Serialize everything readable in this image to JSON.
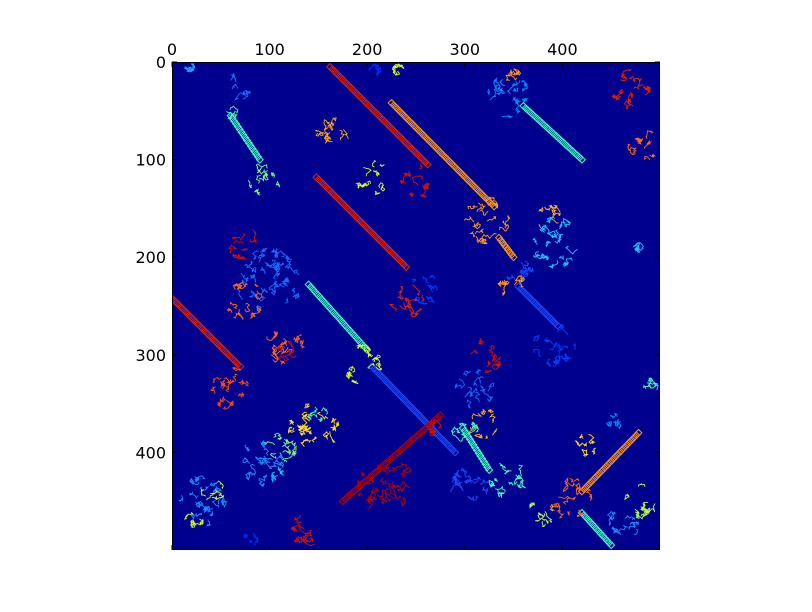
{
  "chart_data": {
    "type": "heatmap",
    "title": "",
    "xlabel": "",
    "ylabel": "",
    "xlim": [
      0,
      500
    ],
    "ylim": [
      500,
      0
    ],
    "x_ticks": [
      0,
      100,
      200,
      300,
      400
    ],
    "y_ticks": [
      0,
      100,
      200,
      300,
      400
    ],
    "x_axis_position": "top",
    "y_axis_inverted": true,
    "colormap": "jet",
    "background_color": "#00008f",
    "grid": false,
    "legend": "none",
    "blobs": [
      {
        "x": 68,
        "y": 25,
        "r": 14,
        "color": "#1a6cff"
      },
      {
        "x": 60,
        "y": 50,
        "r": 8,
        "color": "#4dffae"
      },
      {
        "x": 95,
        "y": 120,
        "r": 17,
        "color": "#7dff80"
      },
      {
        "x": 165,
        "y": 70,
        "r": 18,
        "color": "#ffa614"
      },
      {
        "x": 205,
        "y": 118,
        "r": 18,
        "color": "#d4ff22"
      },
      {
        "x": 252,
        "y": 122,
        "r": 18,
        "color": "#d41100"
      },
      {
        "x": 18,
        "y": 5,
        "r": 5,
        "color": "#2aa8ff"
      },
      {
        "x": 208,
        "y": 8,
        "r": 6,
        "color": "#0030ff"
      },
      {
        "x": 232,
        "y": 8,
        "r": 6,
        "color": "#d4ff22"
      },
      {
        "x": 345,
        "y": 35,
        "r": 22,
        "color": "#0090ff"
      },
      {
        "x": 350,
        "y": 15,
        "r": 8,
        "color": "#ff9a1a"
      },
      {
        "x": 470,
        "y": 28,
        "r": 20,
        "color": "#e62300"
      },
      {
        "x": 483,
        "y": 85,
        "r": 16,
        "color": "#ff6a1a"
      },
      {
        "x": 388,
        "y": 160,
        "r": 14,
        "color": "#ffb21a"
      },
      {
        "x": 392,
        "y": 185,
        "r": 26,
        "color": "#20c4ff"
      },
      {
        "x": 322,
        "y": 162,
        "r": 24,
        "color": "#ff9a1a"
      },
      {
        "x": 356,
        "y": 215,
        "r": 14,
        "color": "#1a4cff"
      },
      {
        "x": 348,
        "y": 228,
        "r": 14,
        "color": "#ff9a1a"
      },
      {
        "x": 72,
        "y": 185,
        "r": 17,
        "color": "#d41100"
      },
      {
        "x": 100,
        "y": 225,
        "r": 34,
        "color": "#1a6cff"
      },
      {
        "x": 75,
        "y": 245,
        "r": 20,
        "color": "#ff6a1a"
      },
      {
        "x": 115,
        "y": 290,
        "r": 20,
        "color": "#ff6a1a"
      },
      {
        "x": 120,
        "y": 298,
        "r": 12,
        "color": "#d41100"
      },
      {
        "x": 260,
        "y": 232,
        "r": 16,
        "color": "#0040ff"
      },
      {
        "x": 240,
        "y": 245,
        "r": 18,
        "color": "#e62300"
      },
      {
        "x": 392,
        "y": 290,
        "r": 22,
        "color": "#0040ff"
      },
      {
        "x": 195,
        "y": 310,
        "r": 20,
        "color": "#d4ff22"
      },
      {
        "x": 62,
        "y": 335,
        "r": 22,
        "color": "#ff4a10"
      },
      {
        "x": 145,
        "y": 375,
        "r": 26,
        "color": "#ffe01a"
      },
      {
        "x": 110,
        "y": 395,
        "r": 18,
        "color": "#7dff80"
      },
      {
        "x": 150,
        "y": 362,
        "r": 10,
        "color": "#4dffae"
      },
      {
        "x": 322,
        "y": 300,
        "r": 18,
        "color": "#d41100"
      },
      {
        "x": 310,
        "y": 335,
        "r": 20,
        "color": "#1a6cff"
      },
      {
        "x": 318,
        "y": 370,
        "r": 16,
        "color": "#ffb21a"
      },
      {
        "x": 300,
        "y": 375,
        "r": 14,
        "color": "#40ffbf"
      },
      {
        "x": 90,
        "y": 412,
        "r": 24,
        "color": "#1a8cff"
      },
      {
        "x": 112,
        "y": 425,
        "r": 10,
        "color": "#20c4ff"
      },
      {
        "x": 30,
        "y": 450,
        "r": 26,
        "color": "#1a8cff"
      },
      {
        "x": 42,
        "y": 440,
        "r": 12,
        "color": "#ccff33"
      },
      {
        "x": 22,
        "y": 470,
        "r": 10,
        "color": "#ccff33"
      },
      {
        "x": 80,
        "y": 490,
        "r": 8,
        "color": "#0030ff"
      },
      {
        "x": 138,
        "y": 478,
        "r": 18,
        "color": "#d41100"
      },
      {
        "x": 220,
        "y": 435,
        "r": 30,
        "color": "#b30000"
      },
      {
        "x": 268,
        "y": 375,
        "r": 8,
        "color": "#d41100"
      },
      {
        "x": 305,
        "y": 435,
        "r": 20,
        "color": "#1a4cff"
      },
      {
        "x": 345,
        "y": 428,
        "r": 20,
        "color": "#40ffbf"
      },
      {
        "x": 378,
        "y": 462,
        "r": 14,
        "color": "#b3ff4d"
      },
      {
        "x": 408,
        "y": 448,
        "r": 22,
        "color": "#ff6a1a"
      },
      {
        "x": 425,
        "y": 392,
        "r": 12,
        "color": "#ffe01a"
      },
      {
        "x": 452,
        "y": 370,
        "r": 10,
        "color": "#0090ff"
      },
      {
        "x": 460,
        "y": 475,
        "r": 18,
        "color": "#1a8cff"
      },
      {
        "x": 482,
        "y": 450,
        "r": 18,
        "color": "#b3ff4d"
      },
      {
        "x": 490,
        "y": 332,
        "r": 8,
        "color": "#40ffbf"
      },
      {
        "x": 478,
        "y": 190,
        "r": 5,
        "color": "#20c4ff"
      }
    ],
    "streaks": [
      {
        "x1": 162,
        "y1": 5,
        "x2": 262,
        "y2": 105,
        "color": "#e62300"
      },
      {
        "x1": 225,
        "y1": 42,
        "x2": 330,
        "y2": 148,
        "color": "#ff9a1a"
      },
      {
        "x1": 60,
        "y1": 55,
        "x2": 90,
        "y2": 100,
        "color": "#40ffbf"
      },
      {
        "x1": 360,
        "y1": 45,
        "x2": 420,
        "y2": 100,
        "color": "#40ffbf"
      },
      {
        "x1": 148,
        "y1": 118,
        "x2": 240,
        "y2": 210,
        "color": "#e62300"
      },
      {
        "x1": 335,
        "y1": 180,
        "x2": 350,
        "y2": 200,
        "color": "#ff9a1a"
      },
      {
        "x1": 140,
        "y1": 228,
        "x2": 200,
        "y2": 295,
        "color": "#40ffbf"
      },
      {
        "x1": 0,
        "y1": 242,
        "x2": 70,
        "y2": 312,
        "color": "#e62300"
      },
      {
        "x1": 355,
        "y1": 230,
        "x2": 395,
        "y2": 270,
        "color": "#1a4cff"
      },
      {
        "x1": 205,
        "y1": 312,
        "x2": 290,
        "y2": 400,
        "color": "#1a4cff"
      },
      {
        "x1": 175,
        "y1": 450,
        "x2": 275,
        "y2": 362,
        "color": "#b30000"
      },
      {
        "x1": 298,
        "y1": 375,
        "x2": 325,
        "y2": 418,
        "color": "#40ffbf"
      },
      {
        "x1": 420,
        "y1": 440,
        "x2": 478,
        "y2": 380,
        "color": "#ff9a1a"
      },
      {
        "x1": 420,
        "y1": 462,
        "x2": 450,
        "y2": 495,
        "color": "#40ffbf"
      }
    ]
  }
}
